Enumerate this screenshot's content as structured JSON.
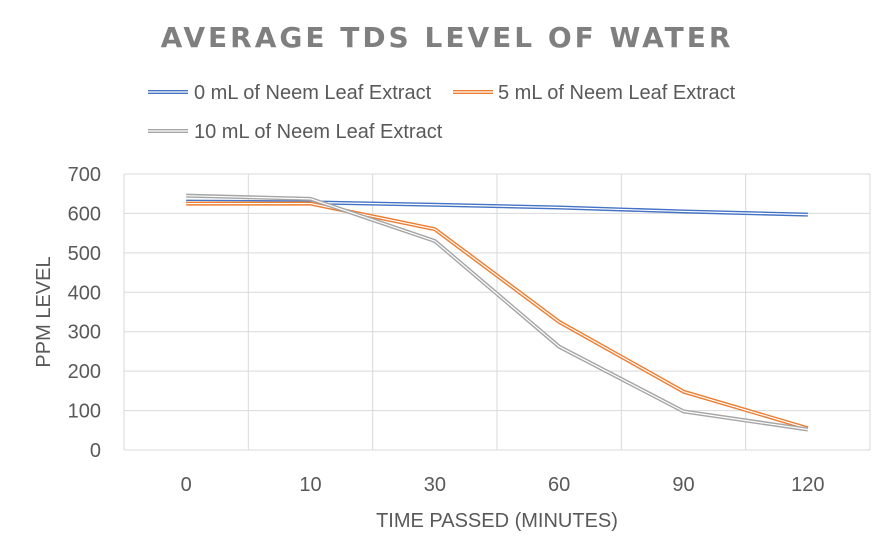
{
  "chart_data": {
    "type": "line",
    "title": "AVERAGE TDS LEVEL OF WATER",
    "xlabel": "TIME PASSED (MINUTES)",
    "ylabel": "PPM LEVEL",
    "categories": [
      "0",
      "10",
      "30",
      "60",
      "90",
      "120"
    ],
    "ylim": [
      0,
      700
    ],
    "yticks": [
      "0",
      "100",
      "200",
      "300",
      "400",
      "500",
      "600",
      "700"
    ],
    "grid": true,
    "legend_position": "top",
    "series": [
      {
        "name": "0 mL of Neem Leaf Extract",
        "color": "#4472c4",
        "values": [
          630,
          628,
          622,
          615,
          605,
          597
        ]
      },
      {
        "name": "5 mL of Neem Leaf Extract",
        "color": "#ed7d31",
        "values": [
          625,
          625,
          560,
          325,
          148,
          55
        ]
      },
      {
        "name": "10 mL of Neem Leaf Extract",
        "color": "#a5a5a5",
        "values": [
          645,
          637,
          530,
          262,
          98,
          52
        ]
      }
    ]
  }
}
